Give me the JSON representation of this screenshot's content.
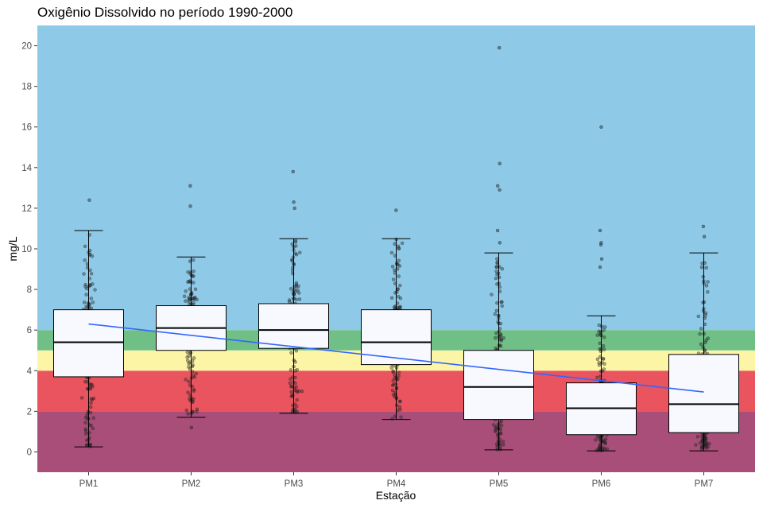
{
  "chart_data": {
    "type": "box",
    "title": "Oxigênio Dissolvido no período 1990-2000",
    "xlabel": "Estação",
    "ylabel": "mg/L",
    "ylim": [
      -1,
      21
    ],
    "yticks": [
      0,
      2,
      4,
      6,
      8,
      10,
      12,
      14,
      16,
      18,
      20
    ],
    "categories": [
      "PM1",
      "PM2",
      "PM3",
      "PM4",
      "PM5",
      "PM6",
      "PM7"
    ],
    "background_bands": [
      {
        "from": -1,
        "to": 2,
        "color": "#a84e78"
      },
      {
        "from": 2,
        "to": 4,
        "color": "#e9545f"
      },
      {
        "from": 4,
        "to": 5,
        "color": "#fdf5a6"
      },
      {
        "from": 5,
        "to": 6,
        "color": "#6fbf86"
      },
      {
        "from": 6,
        "to": 21,
        "color": "#8ecae8"
      }
    ],
    "boxes": [
      {
        "category": "PM1",
        "whisker_low": 0.25,
        "q1": 3.7,
        "median": 5.4,
        "q3": 7.0,
        "whisker_high": 10.9,
        "outliers": [
          12.4
        ]
      },
      {
        "category": "PM2",
        "whisker_low": 1.7,
        "q1": 5.0,
        "median": 6.1,
        "q3": 7.2,
        "whisker_high": 9.6,
        "outliers": [
          1.2,
          12.1,
          13.1
        ]
      },
      {
        "category": "PM3",
        "whisker_low": 1.9,
        "q1": 5.1,
        "median": 6.0,
        "q3": 7.3,
        "whisker_high": 10.5,
        "outliers": [
          12.0,
          12.3,
          13.8
        ]
      },
      {
        "category": "PM4",
        "whisker_low": 1.6,
        "q1": 4.3,
        "median": 5.4,
        "q3": 7.0,
        "whisker_high": 10.5,
        "outliers": [
          11.9
        ]
      },
      {
        "category": "PM5",
        "whisker_low": 0.1,
        "q1": 1.6,
        "median": 3.2,
        "q3": 5.0,
        "whisker_high": 9.8,
        "outliers": [
          10.3,
          10.9,
          12.9,
          13.1,
          14.2,
          19.9
        ]
      },
      {
        "category": "PM6",
        "whisker_low": 0.05,
        "q1": 0.85,
        "median": 2.15,
        "q3": 3.4,
        "whisker_high": 6.7,
        "outliers": [
          9.1,
          9.5,
          10.2,
          10.3,
          10.9,
          16.0
        ]
      },
      {
        "category": "PM7",
        "whisker_low": 0.05,
        "q1": 0.95,
        "median": 2.35,
        "q3": 4.8,
        "whisker_high": 9.8,
        "outliers": [
          10.6,
          11.1
        ]
      }
    ],
    "trend_line": {
      "from": {
        "x": "PM1",
        "y": 6.3
      },
      "to": {
        "x": "PM7",
        "y": 2.95
      },
      "color": "#3366ff"
    },
    "colors": {
      "box_fill": "#f7f9fe",
      "box_stroke": "#000000",
      "point": "#222222",
      "trend": "#3366ff"
    }
  }
}
